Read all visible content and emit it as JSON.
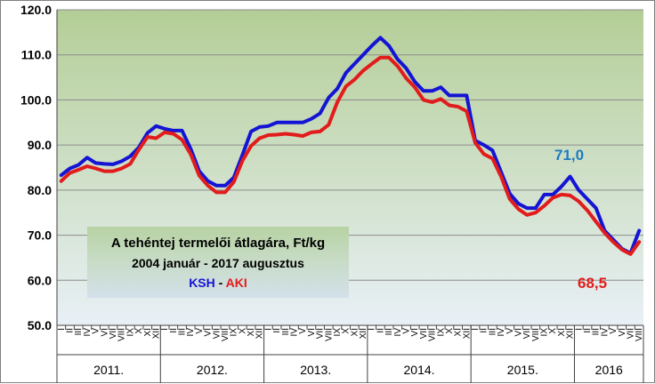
{
  "chart_data": {
    "type": "line",
    "title_lines": [
      "A tehéntej termelői átlagára, Ft/kg",
      "2004 január - 2017 augusztus"
    ],
    "legend": {
      "ksh": "KSH",
      "separator": " - ",
      "aki": "AKI"
    },
    "ylim": [
      50,
      120
    ],
    "yticks": [
      "50.0",
      "60.0",
      "70.0",
      "80.0",
      "90.0",
      "100.0",
      "110.0",
      "120.0"
    ],
    "month_labels": [
      "I",
      "II",
      "III",
      "IV",
      "V",
      "VI",
      "VII",
      "VIII",
      "IX",
      "X",
      "XI",
      "XII",
      "I",
      "II",
      "III",
      "IV",
      "V",
      "VI",
      "VII",
      "VIII",
      "IX",
      "X",
      "XI",
      "XII",
      "I",
      "II",
      "III",
      "IV",
      "V",
      "VI",
      "VII",
      "VIII",
      "IX",
      "X",
      "XI",
      "XII",
      "I",
      "II",
      "III",
      "IV",
      "V",
      "VI",
      "VII",
      "VIII",
      "IX",
      "X",
      "XI",
      "XII",
      "I",
      "II",
      "III",
      "IV",
      "V",
      "VI",
      "VII",
      "VIII",
      "IX",
      "X",
      "XI",
      "XII",
      "I",
      "II",
      "III",
      "IV",
      "V",
      "VI",
      "VII",
      "VIII"
    ],
    "years": [
      "2011.",
      "2012.",
      "2013.",
      "2014.",
      "2015.",
      "2016"
    ],
    "series": [
      {
        "name": "KSH",
        "color": "#1414d4",
        "values": [
          83.3,
          84.8,
          85.6,
          87.2,
          86.0,
          85.8,
          85.7,
          86.4,
          87.5,
          89.5,
          92.7,
          94.2,
          93.6,
          93.2,
          93.2,
          89.2,
          84.2,
          82.0,
          81.0,
          81.0,
          82.8,
          87.8,
          93.0,
          94.0,
          94.2,
          95.0,
          95.0,
          95.0,
          95.0,
          95.8,
          97.0,
          100.5,
          102.5,
          106.0,
          108.0,
          110.0,
          112.0,
          113.8,
          112.0,
          109.0,
          107.0,
          104.0,
          102.0,
          102.0,
          102.8,
          101.0,
          101.0,
          101.0,
          91.0,
          90.0,
          88.8,
          84.0,
          79.2,
          77.0,
          76.0,
          76.0,
          79.0,
          79.0,
          80.8,
          83.0,
          80.0,
          78.0,
          76.0,
          71.0,
          69.0,
          67.0,
          66.0,
          71.0
        ]
      },
      {
        "name": "AKI",
        "color": "#e21c1c",
        "values": [
          82.0,
          83.8,
          84.5,
          85.3,
          84.8,
          84.2,
          84.2,
          84.8,
          85.8,
          89.0,
          91.8,
          91.5,
          92.8,
          92.5,
          91.2,
          88.0,
          83.2,
          81.0,
          79.5,
          79.5,
          81.8,
          86.5,
          89.8,
          91.5,
          92.2,
          92.3,
          92.5,
          92.3,
          92.0,
          92.8,
          93.0,
          94.5,
          99.5,
          103.0,
          104.5,
          106.5,
          108.0,
          109.4,
          109.4,
          107.5,
          104.8,
          102.8,
          100.0,
          99.5,
          100.2,
          98.8,
          98.5,
          97.5,
          90.5,
          88.0,
          87.0,
          83.0,
          78.0,
          75.8,
          74.5,
          75.0,
          76.5,
          78.3,
          79.0,
          78.8,
          77.5,
          75.5,
          73.0,
          70.5,
          68.5,
          66.8,
          65.8,
          68.5
        ]
      }
    ],
    "end_labels": {
      "ksh": "71,0",
      "aki": "68,5"
    },
    "background": {
      "top": "#b4ce96",
      "bottom": "#e8f0f6"
    },
    "grid": true
  }
}
